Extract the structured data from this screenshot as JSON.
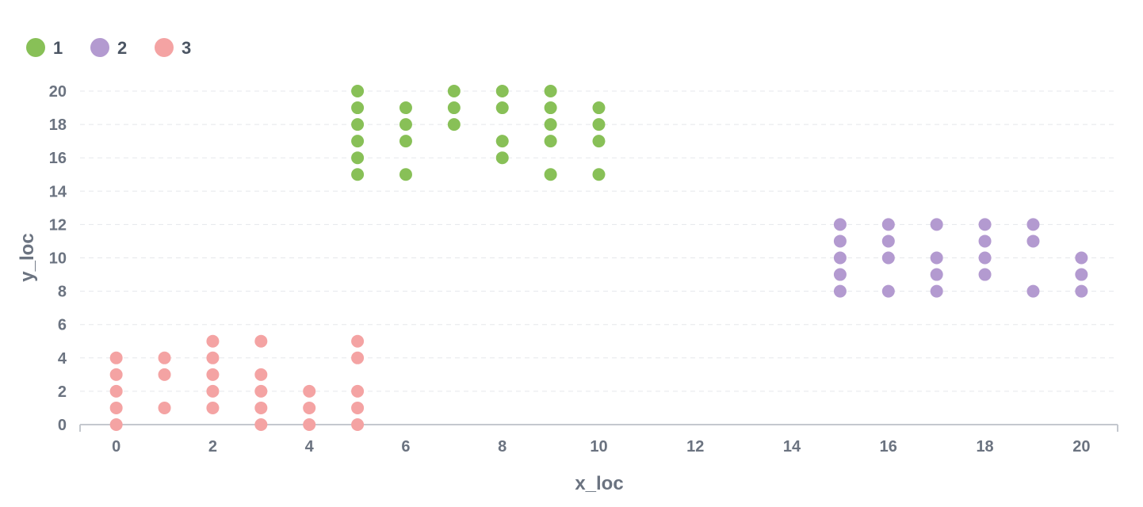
{
  "chart_data": {
    "type": "scatter",
    "xlabel": "x_loc",
    "ylabel": "y_loc",
    "xlim": [
      -0.75,
      20.75
    ],
    "ylim": [
      0,
      20
    ],
    "x_ticks": [
      0,
      2,
      4,
      6,
      8,
      10,
      12,
      14,
      16,
      18,
      20
    ],
    "y_ticks": [
      0,
      2,
      4,
      6,
      8,
      10,
      12,
      14,
      16,
      18,
      20
    ],
    "grid": true,
    "legend_position": "top-left",
    "series": [
      {
        "name": "1",
        "color": "#88c057",
        "points": [
          [
            5,
            15
          ],
          [
            5,
            16
          ],
          [
            5,
            17
          ],
          [
            5,
            18
          ],
          [
            5,
            19
          ],
          [
            5,
            20
          ],
          [
            6,
            15
          ],
          [
            6,
            17
          ],
          [
            6,
            18
          ],
          [
            6,
            19
          ],
          [
            7,
            18
          ],
          [
            7,
            19
          ],
          [
            7,
            20
          ],
          [
            8,
            16
          ],
          [
            8,
            17
          ],
          [
            8,
            19
          ],
          [
            8,
            20
          ],
          [
            9,
            15
          ],
          [
            9,
            17
          ],
          [
            9,
            18
          ],
          [
            9,
            19
          ],
          [
            9,
            20
          ],
          [
            10,
            15
          ],
          [
            10,
            17
          ],
          [
            10,
            18
          ],
          [
            10,
            19
          ]
        ]
      },
      {
        "name": "2",
        "color": "#b39ad0",
        "points": [
          [
            15,
            8
          ],
          [
            15,
            9
          ],
          [
            15,
            10
          ],
          [
            15,
            11
          ],
          [
            15,
            12
          ],
          [
            16,
            8
          ],
          [
            16,
            10
          ],
          [
            16,
            11
          ],
          [
            16,
            12
          ],
          [
            17,
            8
          ],
          [
            17,
            9
          ],
          [
            17,
            10
          ],
          [
            17,
            12
          ],
          [
            18,
            9
          ],
          [
            18,
            10
          ],
          [
            18,
            11
          ],
          [
            18,
            12
          ],
          [
            19,
            8
          ],
          [
            19,
            11
          ],
          [
            19,
            12
          ],
          [
            20,
            8
          ],
          [
            20,
            9
          ],
          [
            20,
            10
          ]
        ]
      },
      {
        "name": "3",
        "color": "#f4a3a3",
        "points": [
          [
            0,
            0
          ],
          [
            0,
            1
          ],
          [
            0,
            2
          ],
          [
            0,
            3
          ],
          [
            0,
            4
          ],
          [
            1,
            1
          ],
          [
            1,
            3
          ],
          [
            1,
            4
          ],
          [
            2,
            1
          ],
          [
            2,
            2
          ],
          [
            2,
            3
          ],
          [
            2,
            4
          ],
          [
            2,
            5
          ],
          [
            3,
            0
          ],
          [
            3,
            1
          ],
          [
            3,
            2
          ],
          [
            3,
            3
          ],
          [
            3,
            5
          ],
          [
            4,
            0
          ],
          [
            4,
            1
          ],
          [
            4,
            2
          ],
          [
            5,
            0
          ],
          [
            5,
            1
          ],
          [
            5,
            2
          ],
          [
            5,
            4
          ],
          [
            5,
            5
          ]
        ]
      }
    ]
  }
}
